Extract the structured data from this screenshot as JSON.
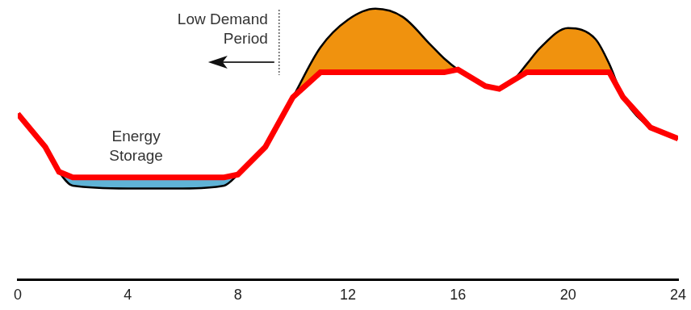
{
  "chart_data": {
    "type": "line",
    "x": [
      0,
      1,
      1.5,
      2,
      4,
      6,
      7.5,
      8,
      9,
      10,
      11,
      12,
      13,
      14,
      15,
      15.5,
      16,
      17,
      17.5,
      18,
      18.5,
      19,
      20,
      21,
      21.5,
      22,
      23,
      24
    ],
    "series": [
      {
        "color": "#000000",
        "values": [
          60,
          48,
          39,
          34,
          33,
          33,
          34,
          38,
          48,
          66,
          84,
          94,
          98,
          95,
          85,
          80,
          76,
          70,
          69,
          72,
          78,
          84,
          91,
          87,
          78,
          66,
          55,
          51
        ]
      },
      {
        "color": "#ff0000",
        "values": [
          60,
          48,
          39,
          37,
          37,
          37,
          37,
          38,
          48,
          66,
          75,
          75,
          75,
          75,
          75,
          75,
          76,
          70,
          69,
          72,
          75,
          75,
          75,
          75,
          75,
          66,
          55,
          51
        ]
      }
    ],
    "xlim": [
      0,
      24
    ],
    "xticks": [
      0,
      4,
      8,
      12,
      16,
      20,
      24
    ],
    "ylim": [
      0,
      100
    ],
    "tick_labels": "x",
    "grid": false,
    "annotations": [
      {
        "text": [
          "Low Demand",
          "Period"
        ],
        "x": 9.5,
        "y": 88,
        "line_style": "dashed"
      },
      {
        "text": [
          "Energy",
          "Storage"
        ],
        "x": 4.3,
        "y": 48
      }
    ]
  }
}
